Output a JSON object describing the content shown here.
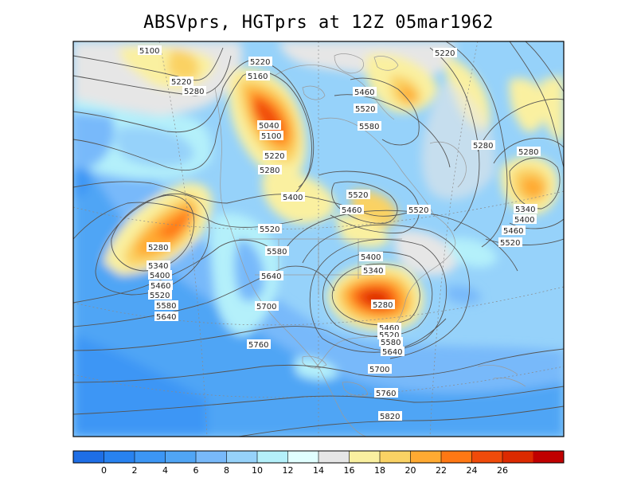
{
  "title": "ABSVprs, HGTprs at 12Z  05mar1962",
  "colorbar": {
    "colors": [
      "#1e6ee6",
      "#2882f0",
      "#3c96f5",
      "#50a5f5",
      "#78b9fa",
      "#96d2fa",
      "#b4f0fa",
      "#e1ffff",
      "#e6e6e6",
      "#faf0a0",
      "#fad264",
      "#ffaa32",
      "#ff7814",
      "#f04b0a",
      "#dc2a00",
      "#c00000"
    ],
    "labels": [
      "0",
      "2",
      "4",
      "6",
      "8",
      "10",
      "12",
      "14",
      "16",
      "18",
      "20",
      "22",
      "24",
      "26"
    ]
  },
  "contour_labels": [
    {
      "text": "5100"
    },
    {
      "text": "5220"
    },
    {
      "text": "5220"
    },
    {
      "text": "5220"
    },
    {
      "text": "5280"
    },
    {
      "text": "5160"
    },
    {
      "text": "5040"
    },
    {
      "text": "5100"
    },
    {
      "text": "5220"
    },
    {
      "text": "5280"
    },
    {
      "text": "5460"
    },
    {
      "text": "5520"
    },
    {
      "text": "5580"
    },
    {
      "text": "5280"
    },
    {
      "text": "5280"
    },
    {
      "text": "5400"
    },
    {
      "text": "5520"
    },
    {
      "text": "5460"
    },
    {
      "text": "5520"
    },
    {
      "text": "5340"
    },
    {
      "text": "5400"
    },
    {
      "text": "5460"
    },
    {
      "text": "5520"
    },
    {
      "text": "5280"
    },
    {
      "text": "5340"
    },
    {
      "text": "5400"
    },
    {
      "text": "5460"
    },
    {
      "text": "5520"
    },
    {
      "text": "5580"
    },
    {
      "text": "5640"
    },
    {
      "text": "5520"
    },
    {
      "text": "5580"
    },
    {
      "text": "5640"
    },
    {
      "text": "5700"
    },
    {
      "text": "5400"
    },
    {
      "text": "5340"
    },
    {
      "text": "5280"
    },
    {
      "text": "5460"
    },
    {
      "text": "5520"
    },
    {
      "text": "5580"
    },
    {
      "text": "5640"
    },
    {
      "text": "5760"
    },
    {
      "text": "5700"
    },
    {
      "text": "5760"
    },
    {
      "text": "5820"
    }
  ]
}
